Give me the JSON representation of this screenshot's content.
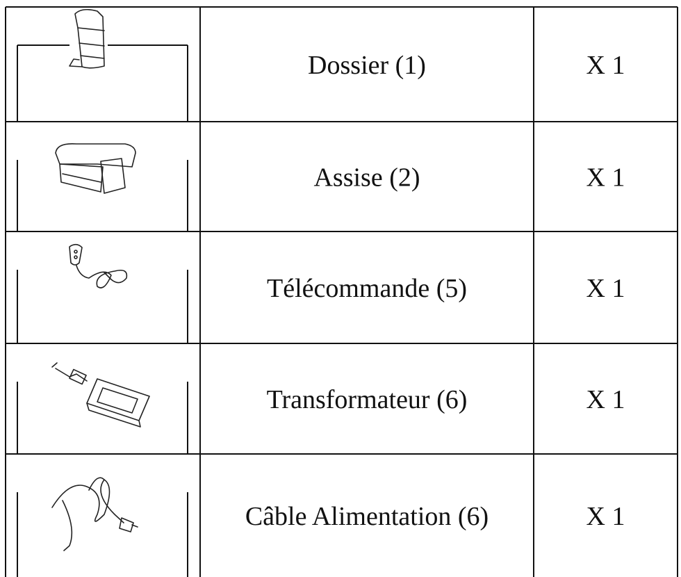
{
  "table": {
    "rows": [
      [
        "Dossier (1)",
        "X 1"
      ],
      [
        "Assise (2)",
        "X 1"
      ],
      [
        "Télécommande (5)",
        "X 1"
      ],
      [
        "Transformateur (6)",
        "X 1"
      ],
      [
        "Câble Alimentation (6)",
        "X 1"
      ]
    ]
  }
}
